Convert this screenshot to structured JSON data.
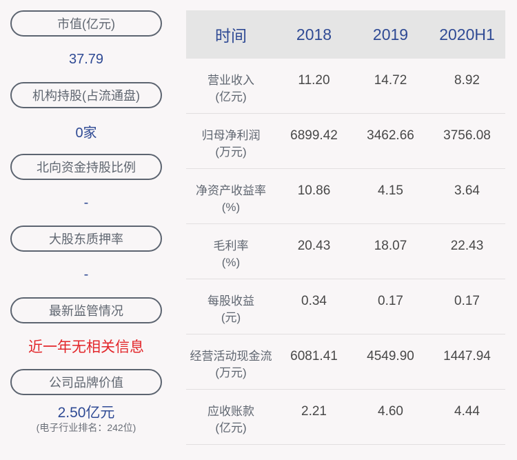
{
  "left_panel": {
    "items": [
      {
        "label": "市值(亿元)",
        "value": "37.79"
      },
      {
        "label": "机构持股(占流通盘)",
        "value": "0家"
      },
      {
        "label": "北向资金持股比例",
        "value": "-"
      },
      {
        "label": "大股东质押率",
        "value": "-"
      },
      {
        "label": "最新监管情况",
        "value": "近一年无相关信息"
      },
      {
        "label": "公司品牌价值",
        "value": "2.50亿元",
        "sub": "(电子行业排名：242位)"
      }
    ],
    "colors": {
      "value": "#2f4a94",
      "alert": "#e2262a",
      "pill_border": "#5c6470"
    }
  },
  "table": {
    "headers": [
      "时间",
      "2018",
      "2019",
      "2020H1"
    ],
    "rows": [
      {
        "name": "营业收入",
        "unit": "(亿元)",
        "values": [
          "11.20",
          "14.72",
          "8.92"
        ]
      },
      {
        "name": "归母净利润",
        "unit": "(万元)",
        "values": [
          "6899.42",
          "3462.66",
          "3756.08"
        ]
      },
      {
        "name": "净资产收益率",
        "unit": "(%)",
        "values": [
          "10.86",
          "4.15",
          "3.64"
        ]
      },
      {
        "name": "毛利率",
        "unit": "(%)",
        "values": [
          "20.43",
          "18.07",
          "22.43"
        ]
      },
      {
        "name": "每股收益",
        "unit": "(元)",
        "values": [
          "0.34",
          "0.17",
          "0.17"
        ]
      },
      {
        "name": "经营活动现金流",
        "unit": "(万元)",
        "values": [
          "6081.41",
          "4549.90",
          "1447.94"
        ]
      },
      {
        "name": "应收账款",
        "unit": "(亿元)",
        "values": [
          "2.21",
          "4.60",
          "4.44"
        ]
      }
    ]
  }
}
